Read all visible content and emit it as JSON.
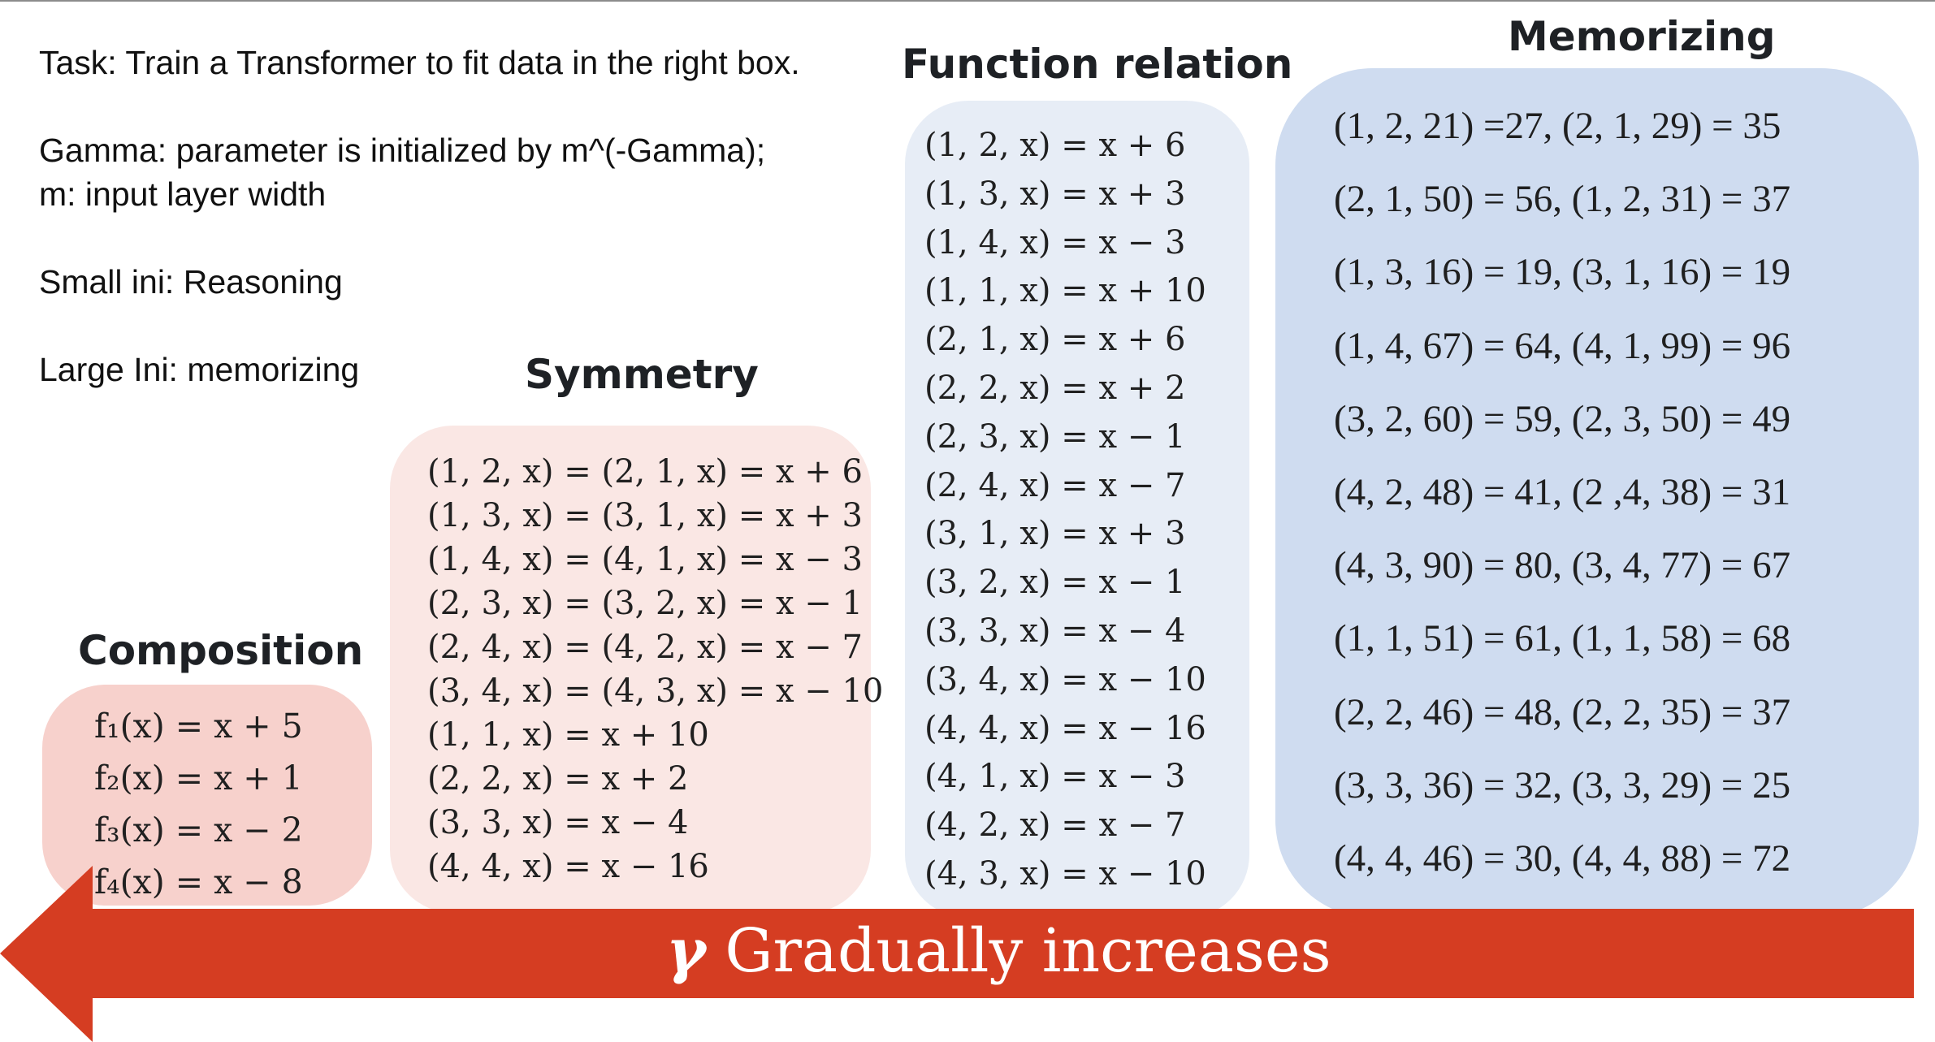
{
  "task": {
    "line1": "Task: Train a Transformer to fit data in the right box.",
    "line2": "Gamma: parameter is initialized by m^(-Gamma);",
    "line3": "m: input layer width",
    "line4": "Small ini: Reasoning",
    "line5": "Large Ini: memorizing"
  },
  "headings": {
    "composition": "Composition",
    "symmetry": "Symmetry",
    "function_relation": "Function relation",
    "memorizing": "Memorizing"
  },
  "composition": [
    "f₁(x) = x + 5",
    "f₂(x) = x + 1",
    "f₃(x) = x − 2",
    "f₄(x) = x − 8"
  ],
  "symmetry": [
    "(1, 2, x) = (2, 1, x) = x + 6",
    "(1, 3, x) = (3, 1, x) = x + 3",
    "(1, 4, x) = (4, 1, x) = x − 3",
    "(2, 3, x) = (3, 2, x) = x − 1",
    "(2, 4, x) = (4, 2, x) = x − 7",
    "(3, 4, x) = (4, 3, x) = x − 10",
    "(1, 1, x)  = x + 10",
    "(2, 2, x)  = x + 2",
    "(3, 3, x) = x − 4",
    "(4, 4, x) = x − 16"
  ],
  "function_relation": [
    "(1, 2, x)  = x + 6",
    "(1, 3, x)  = x + 3",
    "(1, 4, x) = x − 3",
    "(1, 1, x)  = x + 10",
    "(2, 1, x)  = x + 6",
    "(2, 2, x)  = x + 2",
    "(2, 3, x) = x − 1",
    "(2, 4, x) = x − 7",
    "(3, 1, x)  = x + 3",
    "(3, 2, x) = x − 1",
    "(3, 3, x) = x − 4",
    "(3, 4, x) = x − 10",
    "(4, 4, x) = x − 16",
    "(4, 1, x) = x − 3",
    "(4, 2, x) = x − 7",
    "(4, 3, x) = x − 10"
  ],
  "memorizing": [
    "(1, 2, 21) =27,   (2, 1, 29) = 35",
    "(2, 1, 50) = 56,  (1, 2, 31) = 37",
    "(1, 3, 16) = 19,  (3, 1, 16) = 19",
    "(1, 4, 67) = 64,  (4, 1, 99) = 96",
    "(3, 2, 60) = 59,  (2, 3, 50) = 49",
    "(4, 2, 48) = 41,  (2 ,4, 38) = 31",
    "(4, 3, 90) = 80,  (3, 4, 77) = 67",
    "(1, 1, 51) = 61,  (1, 1, 58) = 68",
    "(2, 2, 46) = 48,  (2, 2, 35) = 37",
    "(3, 3, 36) = 32,  (3, 3, 29) = 25",
    "(4, 4, 46) = 30,  (4, 4, 88) = 72"
  ],
  "arrow": {
    "symbol": "γ",
    "label": "Gradually increases"
  },
  "colors": {
    "arrow": "#d53d22",
    "composition_box": "#f7d1cc",
    "symmetry_box": "#fae7e4",
    "function_box": "#e7edf6",
    "memorizing_box": "#cfdcf0"
  }
}
